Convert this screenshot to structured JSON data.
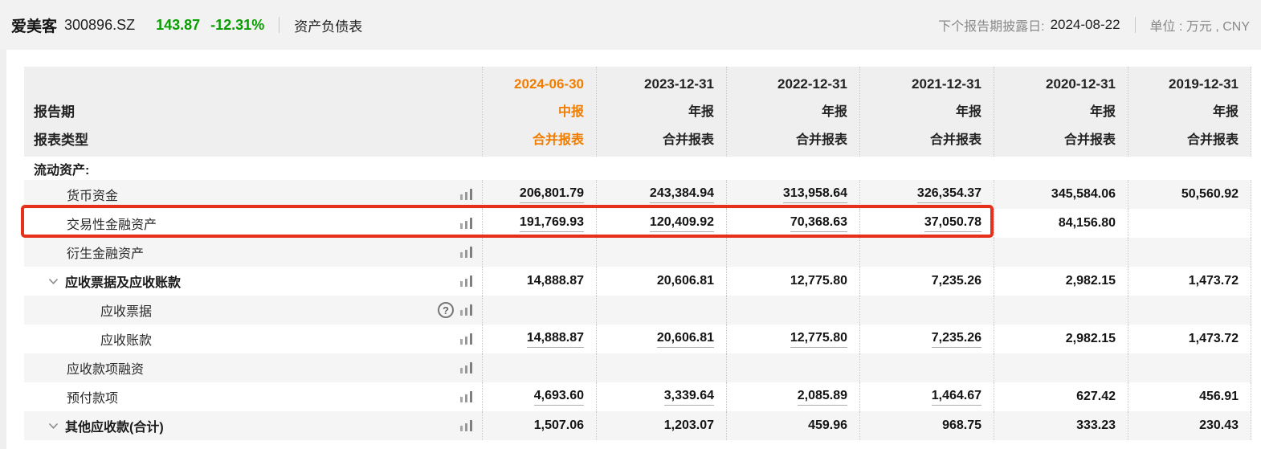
{
  "topbar": {
    "stock_name": "爱美客",
    "stock_code": "300896.SZ",
    "price": "143.87",
    "change_pct": "-12.31%",
    "report_tab": "资产负债表",
    "next_report_label": "下个报告期披露日:",
    "next_report_date": "2024-08-22",
    "unit_label": "单位 : 万元 , CNY"
  },
  "colors": {
    "accent_orange": "#f07d00",
    "quote_green": "#089d00",
    "highlight_red": "#e7301c",
    "stripe_gray": "#f5f5f5",
    "header_gray": "#efefef"
  },
  "table": {
    "corner_labels": [
      "报告期",
      "报表类型"
    ],
    "columns": [
      {
        "date": "2024-06-30",
        "period": "中报",
        "report_type": "合并报表",
        "highlight": true
      },
      {
        "date": "2023-12-31",
        "period": "年报",
        "report_type": "合并报表",
        "highlight": false
      },
      {
        "date": "2022-12-31",
        "period": "年报",
        "report_type": "合并报表",
        "highlight": false
      },
      {
        "date": "2021-12-31",
        "period": "年报",
        "report_type": "合并报表",
        "highlight": false
      },
      {
        "date": "2020-12-31",
        "period": "年报",
        "report_type": "合并报表",
        "highlight": false
      },
      {
        "date": "2019-12-31",
        "period": "年报",
        "report_type": "合并报表",
        "highlight": false
      }
    ],
    "section_header": "流动资产:",
    "rows": [
      {
        "label": "货币资金",
        "indent": 1,
        "bold": false,
        "chevron": false,
        "help": false,
        "values": [
          "206,801.79",
          "243,384.94",
          "313,958.64",
          "326,354.37",
          "345,584.06",
          "50,560.92"
        ],
        "underline_first4": true,
        "highlighted": false
      },
      {
        "label": "交易性金融资产",
        "indent": 1,
        "bold": false,
        "chevron": false,
        "help": false,
        "values": [
          "191,769.93",
          "120,409.92",
          "70,368.63",
          "37,050.78",
          "84,156.80",
          ""
        ],
        "underline_first4": true,
        "highlighted": true
      },
      {
        "label": "衍生金融资产",
        "indent": 1,
        "bold": false,
        "chevron": false,
        "help": false,
        "values": [
          "",
          "",
          "",
          "",
          "",
          ""
        ],
        "underline_first4": false,
        "highlighted": false
      },
      {
        "label": "应收票据及应收账款",
        "indent": 1,
        "bold": true,
        "chevron": true,
        "help": false,
        "values": [
          "14,888.87",
          "20,606.81",
          "12,775.80",
          "7,235.26",
          "2,982.15",
          "1,473.72"
        ],
        "underline_first4": false,
        "highlighted": false
      },
      {
        "label": "应收票据",
        "indent": 2,
        "bold": false,
        "chevron": false,
        "help": true,
        "values": [
          "",
          "",
          "",
          "",
          "",
          ""
        ],
        "underline_first4": false,
        "highlighted": false
      },
      {
        "label": "应收账款",
        "indent": 2,
        "bold": false,
        "chevron": false,
        "help": false,
        "values": [
          "14,888.87",
          "20,606.81",
          "12,775.80",
          "7,235.26",
          "2,982.15",
          "1,473.72"
        ],
        "underline_first4": true,
        "highlighted": false
      },
      {
        "label": "应收款项融资",
        "indent": 1,
        "bold": false,
        "chevron": false,
        "help": false,
        "values": [
          "",
          "",
          "",
          "",
          "",
          ""
        ],
        "underline_first4": false,
        "highlighted": false
      },
      {
        "label": "预付款项",
        "indent": 1,
        "bold": false,
        "chevron": false,
        "help": false,
        "values": [
          "4,693.60",
          "3,339.64",
          "2,085.89",
          "1,464.67",
          "627.42",
          "456.91"
        ],
        "underline_first4": true,
        "highlighted": false
      },
      {
        "label": "其他应收款(合计)",
        "indent": 1,
        "bold": true,
        "chevron": true,
        "help": false,
        "values": [
          "1,507.06",
          "1,203.07",
          "459.96",
          "968.75",
          "333.23",
          "230.43"
        ],
        "underline_first4": false,
        "highlighted": false
      }
    ]
  }
}
